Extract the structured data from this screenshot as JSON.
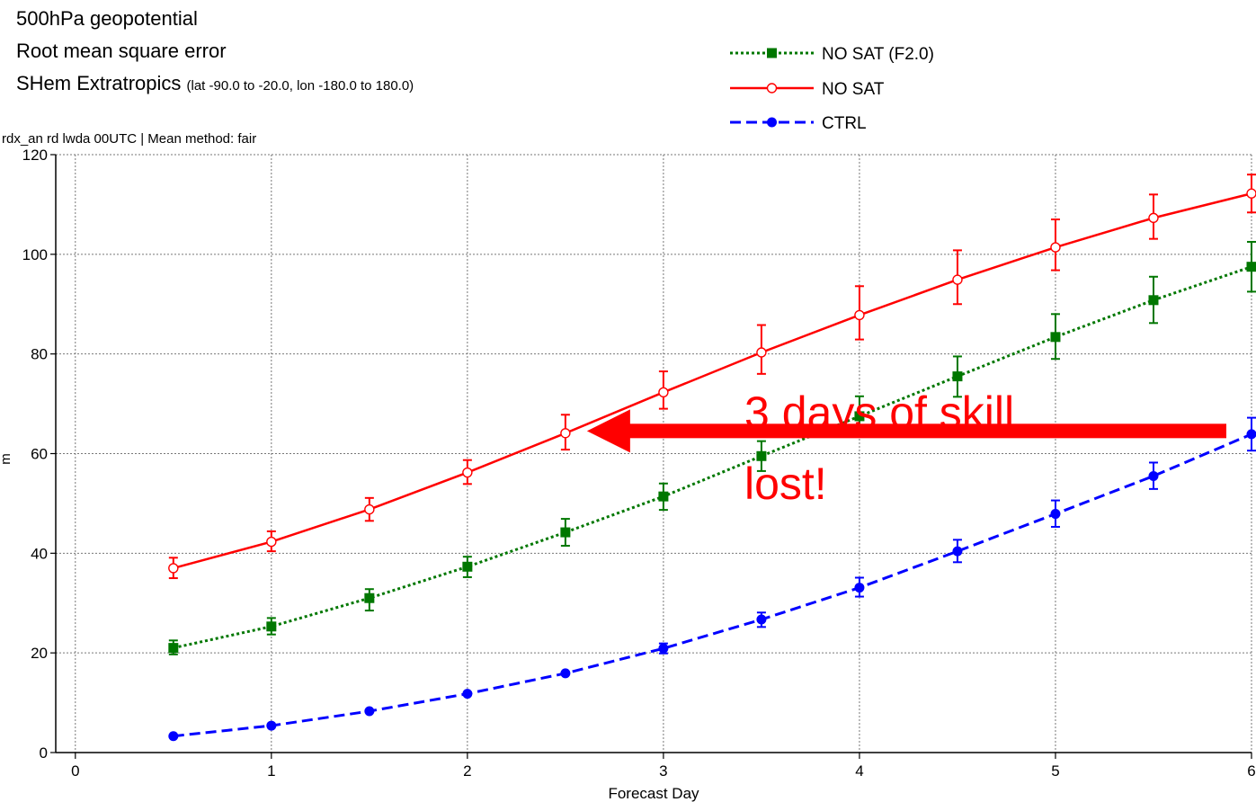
{
  "title_lines": {
    "line1": "500hPa geopotential",
    "line2": "Root mean square error",
    "line3": "SHem Extratropics",
    "line3_detail": "(lat  -90.0 to -20.0, lon  -180.0 to  180.0)"
  },
  "subtitle": "rdx_an rd lwda 00UTC | Mean method: fair",
  "annotation": {
    "line1": "3 days of skill",
    "line2": "lost!",
    "color": "#ff0000",
    "arrow_from": {
      "x": 6.0,
      "y": 64
    },
    "arrow_to": {
      "x": 2.5,
      "y": 64
    }
  },
  "chart_data": {
    "type": "line",
    "xlabel": "Forecast Day",
    "ylabel": "m",
    "xlim": [
      -0.1,
      6
    ],
    "ylim": [
      0,
      120
    ],
    "xticks": [
      0,
      1,
      2,
      3,
      4,
      5,
      6
    ],
    "yticks": [
      0,
      20,
      40,
      60,
      80,
      100,
      120
    ],
    "grid": true,
    "legend_position": "top-center",
    "x": [
      0.5,
      1,
      1.5,
      2,
      2.5,
      3,
      3.5,
      4,
      4.5,
      5,
      5.5,
      6
    ],
    "series": [
      {
        "name": "NO SAT (F2.0)",
        "color": "#007700",
        "line_style": "dotted",
        "marker": "square",
        "values": [
          21,
          25.3,
          31,
          37.3,
          44.2,
          51.4,
          59.5,
          67.5,
          75.5,
          83.4,
          90.8,
          97.5
        ],
        "err_low": [
          19.7,
          23.7,
          28.5,
          35.2,
          41.5,
          48.7,
          56.5,
          63.5,
          71.4,
          79,
          86.2,
          92.5
        ],
        "err_high": [
          22.5,
          27,
          32.8,
          39.3,
          46.9,
          54,
          62.5,
          71.5,
          79.5,
          88,
          95.5,
          102.5
        ]
      },
      {
        "name": "NO SAT",
        "color": "#ff0000",
        "line_style": "solid",
        "marker": "circle-open",
        "values": [
          37,
          42.3,
          48.8,
          56.2,
          64.1,
          72.3,
          80.3,
          87.8,
          94.9,
          101.4,
          107.3,
          112.2
        ],
        "err_low": [
          35,
          40.4,
          46.5,
          53.9,
          60.8,
          69,
          76,
          82.9,
          90,
          96.8,
          103.1,
          108.4
        ],
        "err_high": [
          39.1,
          44.4,
          51.1,
          58.7,
          67.8,
          76.5,
          85.8,
          93.6,
          100.8,
          107,
          112,
          116
        ]
      },
      {
        "name": "CTRL",
        "color": "#0000ff",
        "line_style": "dashed",
        "marker": "circle-filled",
        "values": [
          3.3,
          5.4,
          8.3,
          11.8,
          15.9,
          20.9,
          26.7,
          33.1,
          40.4,
          47.9,
          55.5,
          63.9
        ],
        "err_low": [
          3.3,
          5.4,
          8.3,
          11.8,
          15.9,
          19.9,
          25.2,
          31.3,
          38.2,
          45.3,
          52.9,
          60.6
        ],
        "err_high": [
          3.3,
          5.4,
          8.3,
          11.8,
          15.9,
          21.9,
          28.1,
          35.1,
          42.7,
          50.6,
          58.2,
          67.2
        ]
      }
    ]
  }
}
